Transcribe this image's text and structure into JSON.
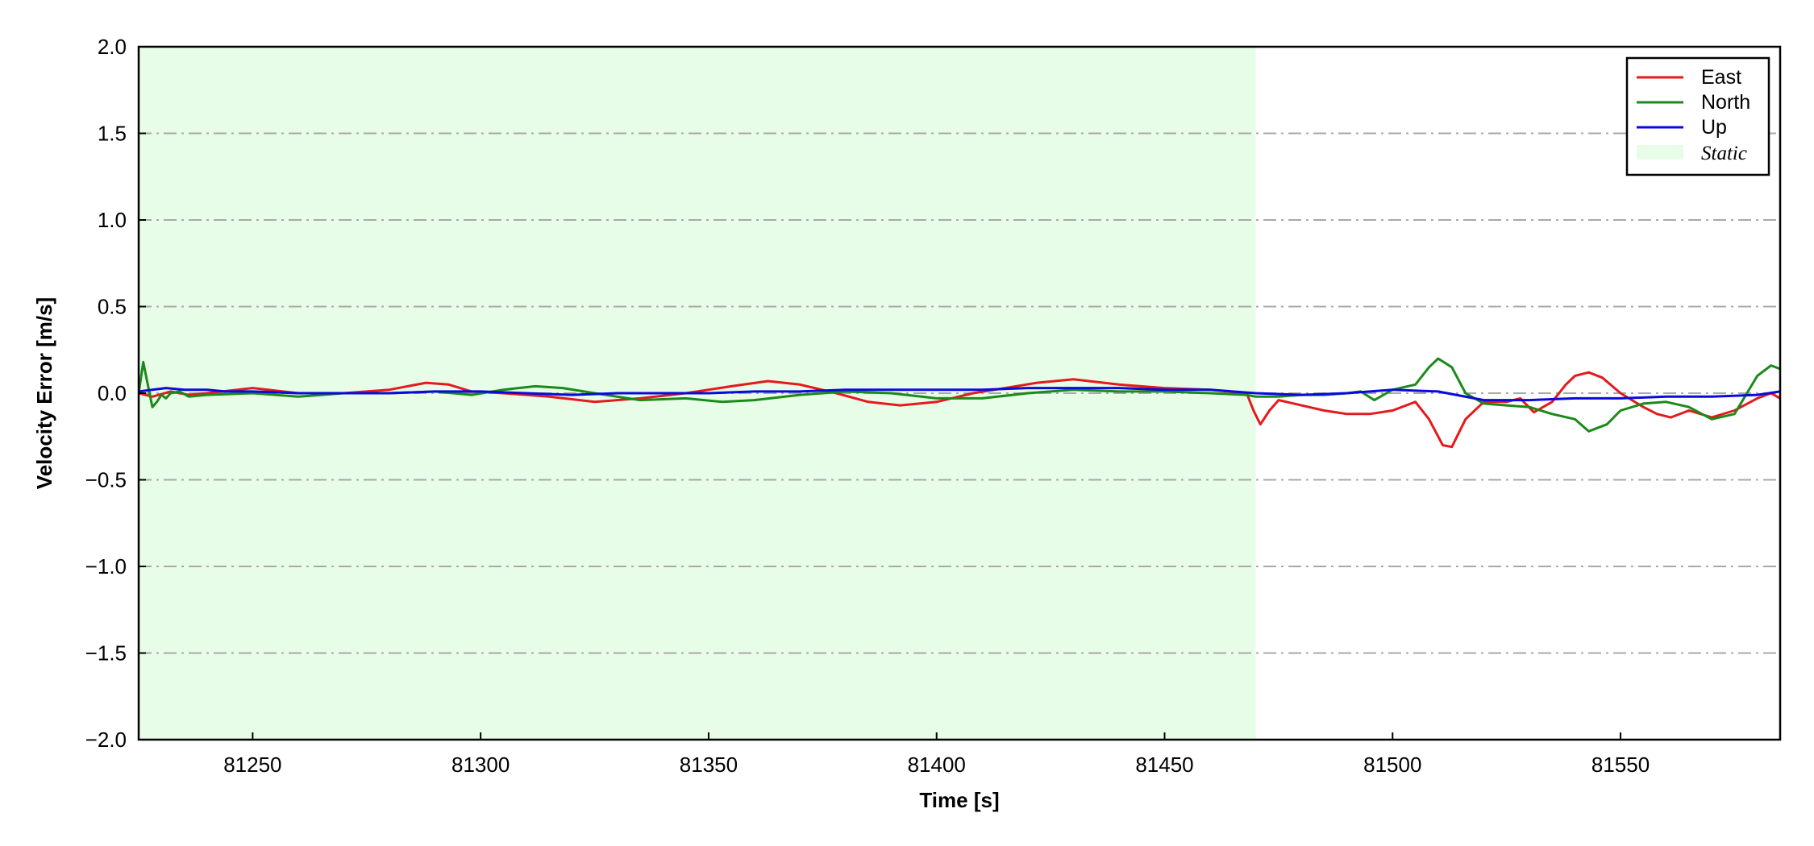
{
  "chart_data": {
    "type": "line",
    "xlabel": "Time [s]",
    "ylabel": "Velocity Error [m/s]",
    "xlim": [
      81225,
      81585
    ],
    "ylim": [
      -2.0,
      2.0
    ],
    "xticks": [
      81250,
      81300,
      81350,
      81400,
      81450,
      81500,
      81550
    ],
    "xtick_labels": [
      "81250",
      "81300",
      "81350",
      "81400",
      "81450",
      "81500",
      "81550"
    ],
    "yticks": [
      2.0,
      1.5,
      1.0,
      0.5,
      0.0,
      -0.5,
      -1.0,
      -1.5,
      -2.0
    ],
    "ytick_labels": [
      "2.0",
      "1.5",
      "1.0",
      "0.5",
      "0.0",
      "−0.5",
      "−1.0",
      "−1.5",
      "−2.0"
    ],
    "grid": "horizontal dash-dot",
    "legend_position": "top-right",
    "shaded_region": {
      "label": "Static",
      "x_start": 81225,
      "x_end": 81470,
      "color": "#e8fde8"
    },
    "series": [
      {
        "name": "East",
        "color": "#e41a1c",
        "x": [
          81225,
          81228,
          81232,
          81236,
          81240,
          81250,
          81260,
          81270,
          81280,
          81288,
          81293,
          81298,
          81305,
          81315,
          81325,
          81335,
          81345,
          81355,
          81363,
          81370,
          81378,
          81385,
          81392,
          81400,
          81408,
          81415,
          81422,
          81430,
          81440,
          81450,
          81460,
          81468,
          81469.5,
          81471,
          81473,
          81475,
          81480,
          81485,
          81490,
          81495,
          81500,
          81505,
          81508,
          81511,
          81513,
          81516,
          81520,
          81525,
          81528,
          81531,
          81535,
          81538,
          81540,
          81543,
          81546,
          81550,
          81555,
          81558,
          81561,
          81565,
          81570,
          81575,
          81580,
          81583,
          81585
        ],
        "y": [
          0.0,
          -0.02,
          0.01,
          -0.01,
          0.0,
          0.03,
          0.0,
          0.0,
          0.02,
          0.06,
          0.05,
          0.01,
          0.0,
          -0.02,
          -0.05,
          -0.03,
          0.0,
          0.04,
          0.07,
          0.05,
          0.0,
          -0.05,
          -0.07,
          -0.05,
          0.0,
          0.03,
          0.06,
          0.08,
          0.05,
          0.03,
          0.02,
          0.0,
          -0.1,
          -0.18,
          -0.1,
          -0.04,
          -0.07,
          -0.1,
          -0.12,
          -0.12,
          -0.1,
          -0.05,
          -0.15,
          -0.3,
          -0.31,
          -0.15,
          -0.05,
          -0.05,
          -0.03,
          -0.11,
          -0.05,
          0.05,
          0.1,
          0.12,
          0.09,
          0.0,
          -0.08,
          -0.12,
          -0.14,
          -0.1,
          -0.14,
          -0.1,
          -0.03,
          0.0,
          -0.03
        ]
      },
      {
        "name": "North",
        "color": "#1a8a1a",
        "x": [
          81225,
          81226,
          81227,
          81228,
          81229,
          81230,
          81231,
          81232,
          81234,
          81236,
          81240,
          81250,
          81260,
          81270,
          81280,
          81290,
          81298,
          81305,
          81312,
          81318,
          81325,
          81335,
          81345,
          81353,
          81360,
          81370,
          81380,
          81390,
          81400,
          81410,
          81420,
          81430,
          81440,
          81450,
          81460,
          81468,
          81470,
          81475,
          81480,
          81485,
          81490,
          81493,
          81496,
          81500,
          81505,
          81508,
          81510,
          81513,
          81516,
          81520,
          81525,
          81530,
          81535,
          81540,
          81543,
          81547,
          81550,
          81555,
          81560,
          81565,
          81570,
          81575,
          81580,
          81583,
          81585
        ],
        "y": [
          0.0,
          0.18,
          0.05,
          -0.08,
          -0.05,
          -0.01,
          -0.03,
          0.0,
          0.01,
          -0.02,
          -0.01,
          0.0,
          -0.02,
          0.0,
          0.0,
          0.01,
          -0.01,
          0.02,
          0.04,
          0.03,
          0.0,
          -0.04,
          -0.03,
          -0.05,
          -0.04,
          -0.01,
          0.01,
          0.0,
          -0.03,
          -0.03,
          0.0,
          0.02,
          0.01,
          0.01,
          0.0,
          -0.01,
          -0.02,
          -0.02,
          -0.01,
          -0.01,
          0.0,
          0.01,
          -0.04,
          0.02,
          0.05,
          0.15,
          0.2,
          0.15,
          0.0,
          -0.06,
          -0.07,
          -0.08,
          -0.12,
          -0.15,
          -0.22,
          -0.18,
          -0.1,
          -0.06,
          -0.05,
          -0.08,
          -0.15,
          -0.12,
          0.1,
          0.16,
          0.14
        ]
      },
      {
        "name": "Up",
        "color": "#0a0adc",
        "x": [
          81225,
          81228,
          81231,
          81235,
          81240,
          81244,
          81250,
          81260,
          81270,
          81280,
          81290,
          81300,
          81310,
          81320,
          81330,
          81340,
          81350,
          81360,
          81370,
          81380,
          81390,
          81400,
          81410,
          81420,
          81430,
          81440,
          81450,
          81460,
          81470,
          81480,
          81490,
          81500,
          81510,
          81520,
          81530,
          81540,
          81550,
          81560,
          81570,
          81580,
          81585
        ],
        "y": [
          0.01,
          0.02,
          0.03,
          0.02,
          0.02,
          0.01,
          0.01,
          0.0,
          0.0,
          0.0,
          0.01,
          0.01,
          0.0,
          -0.01,
          0.0,
          0.0,
          0.0,
          0.01,
          0.01,
          0.02,
          0.02,
          0.02,
          0.02,
          0.03,
          0.03,
          0.03,
          0.02,
          0.02,
          0.0,
          -0.01,
          0.0,
          0.02,
          0.01,
          -0.04,
          -0.04,
          -0.03,
          -0.03,
          -0.02,
          -0.02,
          -0.01,
          0.01
        ]
      }
    ]
  }
}
